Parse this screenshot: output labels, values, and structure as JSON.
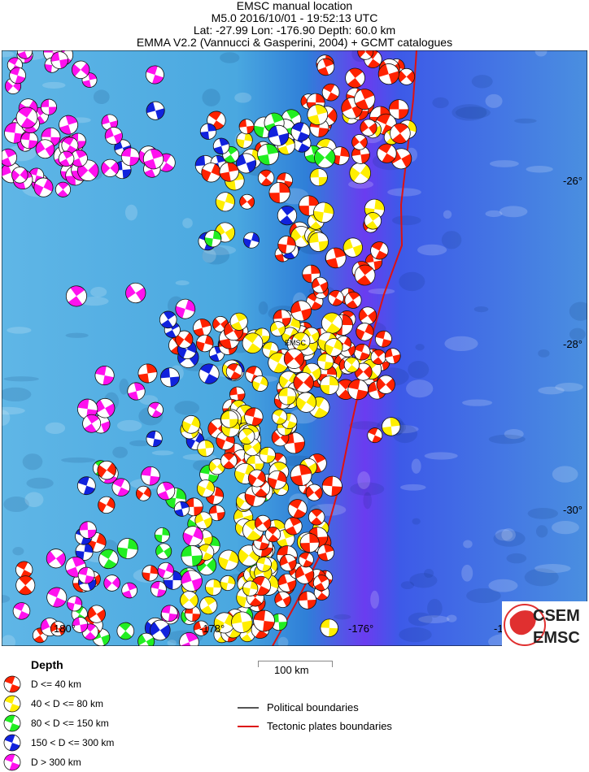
{
  "header": {
    "title": "EMSC manual location",
    "event": "M5.0  2016/10/01 - 19:52:13 UTC",
    "location": "Lat: -27.99    Lon: -176.90     Depth:  60.0 km",
    "source": "EMMA V2.2 (Vannucci & Gasperini, 2004) + GCMT catalogues"
  },
  "map": {
    "epicenter_label": "EMSC",
    "lat_ticks": [
      "-26°",
      "-28°",
      "-30°"
    ],
    "lon_ticks": [
      "180°",
      "-178°",
      "-176°",
      "-1"
    ],
    "logo_text_top": "CSEM",
    "logo_text_bottom": "EMSC"
  },
  "legend": {
    "title": "Depth",
    "items": [
      {
        "label": "D <= 40 km",
        "color": "#ff2200"
      },
      {
        "label": "40 < D <= 80 km",
        "color": "#ffee00"
      },
      {
        "label": "80 < D <= 150 km",
        "color": "#22ee22"
      },
      {
        "label": "150 < D <= 300 km",
        "color": "#1122dd"
      },
      {
        "label": "D > 300 km",
        "color": "#ff11ee"
      }
    ],
    "scale_label": "100 km",
    "boundaries": [
      {
        "label": "Political boundaries",
        "color": "#555555"
      },
      {
        "label": "Tectonic plates boundaries",
        "color": "#dd1111"
      }
    ]
  }
}
